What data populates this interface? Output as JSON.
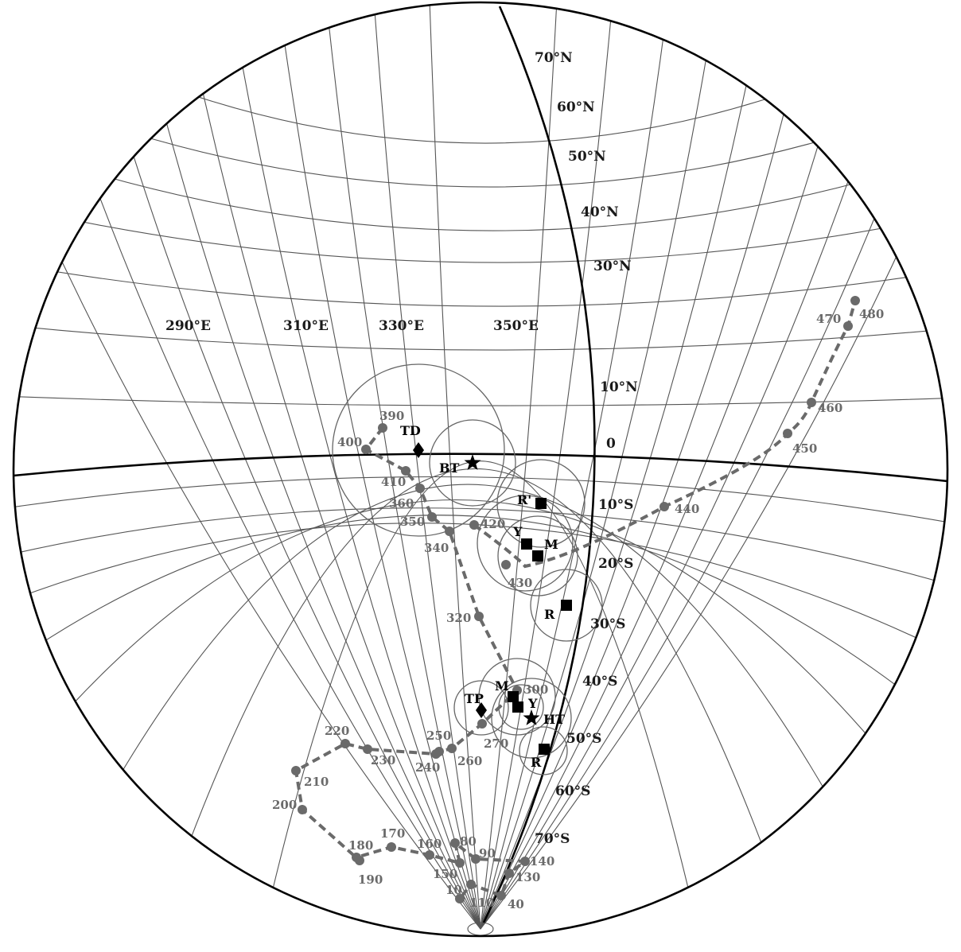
{
  "map": {
    "latitude_labels": [
      "70°N",
      "60°N",
      "50°N",
      "40°N",
      "30°N",
      "10°N",
      "0",
      "10°S",
      "20°S",
      "30°S",
      "40°S",
      "50°S",
      "60°S",
      "70°S"
    ],
    "longitude_labels": [
      "290°E",
      "310°E",
      "330°E",
      "350°E"
    ],
    "apwp_path_1": [
      {
        "label": "390"
      },
      {
        "label": "400"
      },
      {
        "label": "410"
      },
      {
        "label": "360"
      },
      {
        "label": "350"
      },
      {
        "label": "340"
      },
      {
        "label": "320"
      },
      {
        "label": "300"
      },
      {
        "label": "270"
      },
      {
        "label": "260"
      },
      {
        "label": "250"
      },
      {
        "label": "240"
      },
      {
        "label": "230"
      },
      {
        "label": "220"
      },
      {
        "label": "210"
      },
      {
        "label": "200"
      },
      {
        "label": "190"
      },
      {
        "label": "180"
      },
      {
        "label": "170"
      },
      {
        "label": "160"
      },
      {
        "label": "150"
      },
      {
        "label": "80"
      },
      {
        "label": "90"
      },
      {
        "label": "140"
      },
      {
        "label": "130"
      },
      {
        "label": "40"
      },
      {
        "label": "110"
      },
      {
        "label": "10"
      }
    ],
    "apwp_path_2": [
      {
        "label": "420"
      },
      {
        "label": "430"
      },
      {
        "label": "440"
      },
      {
        "label": "450"
      },
      {
        "label": "460"
      },
      {
        "label": "470"
      },
      {
        "label": "480"
      }
    ],
    "poles": [
      {
        "label": "TD",
        "symbol": "diamond"
      },
      {
        "label": "BT",
        "symbol": "star"
      },
      {
        "label": "R'",
        "symbol": "square"
      },
      {
        "label": "Y",
        "symbol": "square"
      },
      {
        "label": "M",
        "symbol": "square"
      },
      {
        "label": "R",
        "symbol": "square"
      },
      {
        "label": "M",
        "symbol": "square"
      },
      {
        "label": "TP",
        "symbol": "diamond"
      },
      {
        "label": "Y",
        "symbol": "square"
      },
      {
        "label": "HT",
        "symbol": "star"
      },
      {
        "label": "R",
        "symbol": "square"
      }
    ],
    "colors": {
      "grid": "#555555",
      "path": "#6a6a6a",
      "pole": "#000000"
    }
  }
}
